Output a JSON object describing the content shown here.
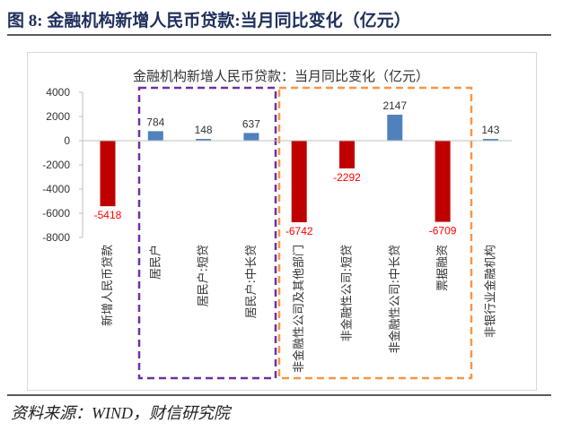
{
  "figure": {
    "caption": "图 8: 金融机构新增人民币贷款:当月同比变化（亿元）",
    "source": "资料来源：WIND，财信研究院"
  },
  "chart_data": {
    "type": "bar",
    "title": "金融机构新增人民币贷款：当月同比变化（亿元）",
    "categories": [
      "新增人民币贷款",
      "居民户",
      "居民户:短贷",
      "居民户:中长贷",
      "非金融性公司及其他部门",
      "非金融性公司:短贷",
      "非金融性公司:中长贷",
      "票据融资",
      "非银行业金融机构"
    ],
    "values": [
      -5418,
      784,
      148,
      637,
      -6742,
      -2292,
      2147,
      -6709,
      143
    ],
    "ylim": [
      -8000,
      4000
    ],
    "yticks": [
      4000,
      2000,
      0,
      -2000,
      -4000,
      -6000,
      -8000
    ],
    "xlabel": "",
    "ylabel": "",
    "grid": false,
    "legend": "none",
    "colors": {
      "positive": "#4f81bd",
      "negative": "#c00000",
      "positive_label": "#333333",
      "negative_label": "#ff0000",
      "household_group_box": "#7030a0",
      "corporate_group_box": "#f79646"
    }
  }
}
